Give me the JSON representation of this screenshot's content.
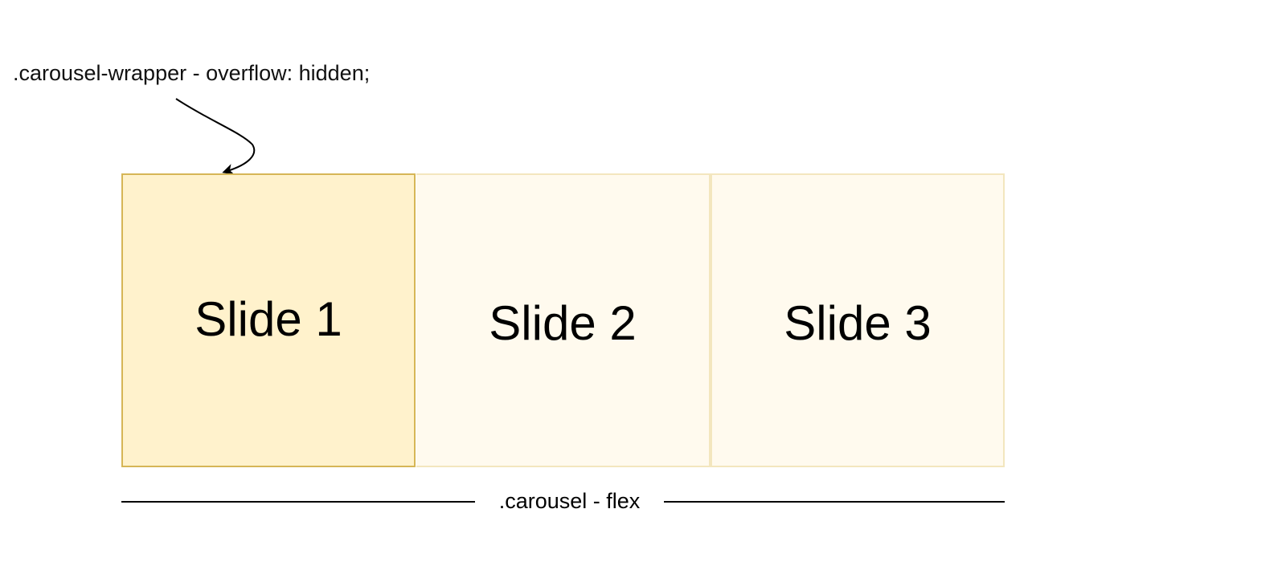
{
  "wrapper": {
    "label": ".carousel-wrapper - overflow: hidden;"
  },
  "slides": [
    {
      "label": "Slide 1",
      "fill": "#fff2cc",
      "stroke": "#d6b656",
      "state": "visible"
    },
    {
      "label": "Slide 2",
      "fill": "#fffaee",
      "stroke": "#f3e6be",
      "state": "faded"
    },
    {
      "label": "Slide 3",
      "fill": "#fffaee",
      "stroke": "#f3e6be",
      "state": "faded"
    }
  ],
  "carousel": {
    "label": ".carousel - flex"
  },
  "colors": {
    "background": "#ffffff",
    "text": "#000000",
    "line": "#000000"
  }
}
